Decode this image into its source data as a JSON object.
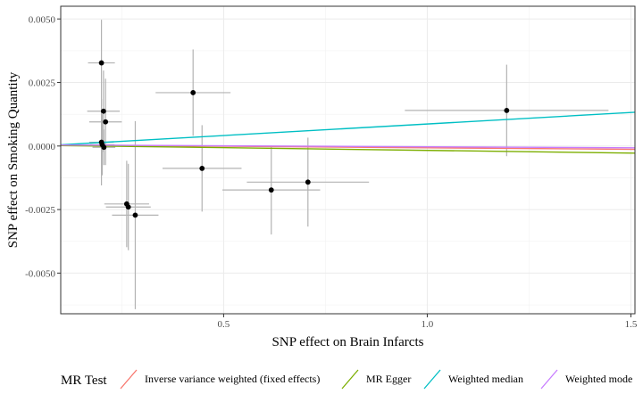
{
  "chart_data": {
    "type": "scatter",
    "title": "",
    "xlabel": "SNP effect on Brain Infarcts",
    "ylabel": "SNP effect on Smoking Quantity",
    "xlim": [
      0.1,
      1.51
    ],
    "ylim": [
      -0.0066,
      0.0055
    ],
    "x_ticks": [
      0.5,
      1.0,
      1.5
    ],
    "x_tick_labels": [
      "0.5",
      "1.0",
      "1.5"
    ],
    "y_ticks": [
      -0.005,
      -0.0025,
      0.0,
      0.0025,
      0.005
    ],
    "y_tick_labels": [
      "-0.0050",
      "-0.0025",
      "0.0000",
      "0.0025",
      "0.0050"
    ],
    "grid": true,
    "points": [
      {
        "x": 0.2,
        "y": 0.00327,
        "xerr": 0.033,
        "yerr": 0.0017
      },
      {
        "x": 0.205,
        "y": 0.00137,
        "xerr": 0.04,
        "yerr": 0.0016
      },
      {
        "x": 0.21,
        "y": 0.00095,
        "xerr": 0.04,
        "yerr": 0.0017
      },
      {
        "x": 0.2,
        "y": 0.00015,
        "xerr": 0.03,
        "yerr": 0.0017
      },
      {
        "x": 0.202,
        "y": 5e-05,
        "xerr": 0.03,
        "yerr": 0.0012
      },
      {
        "x": 0.206,
        "y": -5e-05,
        "xerr": 0.028,
        "yerr": 0.0007
      },
      {
        "x": 0.425,
        "y": 0.0021,
        "xerr": 0.092,
        "yerr": 0.0017
      },
      {
        "x": 0.447,
        "y": -0.00088,
        "xerr": 0.097,
        "yerr": 0.0017
      },
      {
        "x": 0.262,
        "y": -0.00228,
        "xerr": 0.055,
        "yerr": 0.0017
      },
      {
        "x": 0.266,
        "y": -0.0024,
        "xerr": 0.055,
        "yerr": 0.0017
      },
      {
        "x": 0.283,
        "y": -0.00272,
        "xerr": 0.057,
        "yerr": 0.0037
      },
      {
        "x": 0.617,
        "y": -0.00173,
        "xerr": 0.12,
        "yerr": 0.00175
      },
      {
        "x": 0.707,
        "y": -0.00142,
        "xerr": 0.15,
        "yerr": 0.00175
      },
      {
        "x": 1.195,
        "y": 0.0014,
        "xerr": 0.25,
        "yerr": 0.0018
      }
    ],
    "lines": [
      {
        "name": "Inverse variance weighted (fixed effects)",
        "color": "#F8766D",
        "x": [
          0.1,
          1.51
        ],
        "y": [
          4e-05,
          -0.00013
        ]
      },
      {
        "name": "MR Egger",
        "color": "#7CAE00",
        "x": [
          0.1,
          1.51
        ],
        "y": [
          2e-05,
          -0.00028
        ]
      },
      {
        "name": "Weighted median",
        "color": "#00BFC4",
        "x": [
          0.1,
          1.51
        ],
        "y": [
          5e-05,
          0.00133
        ]
      },
      {
        "name": "Weighted mode",
        "color": "#C77CFF",
        "x": [
          0.1,
          1.51
        ],
        "y": [
          4e-05,
          -7e-05
        ]
      }
    ],
    "legend": {
      "title": "MR Test",
      "position": "bottom",
      "entries": [
        "Inverse variance weighted (fixed effects)",
        "MR Egger",
        "Weighted median",
        "Weighted mode"
      ]
    }
  }
}
